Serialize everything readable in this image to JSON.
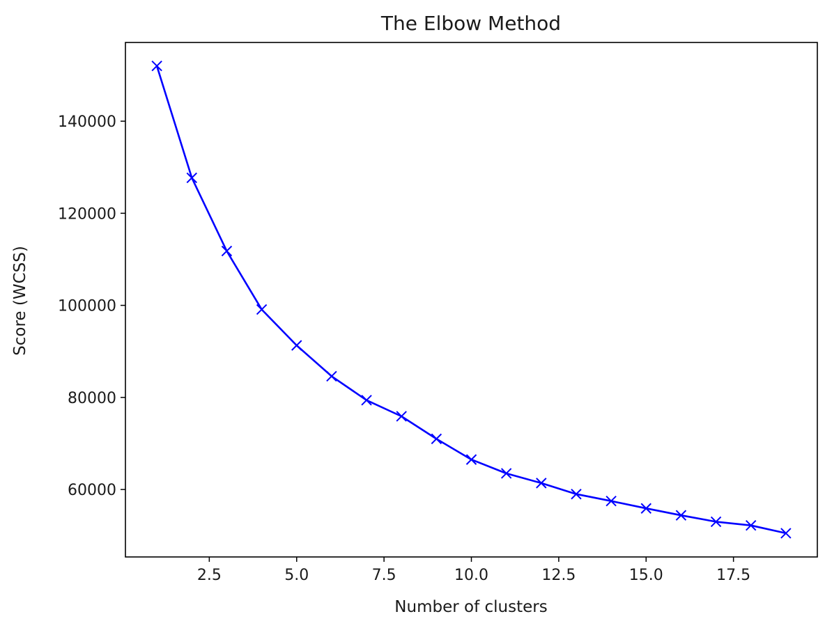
{
  "chart_data": {
    "type": "line",
    "title": "The Elbow Method",
    "xlabel": "Number of clusters",
    "ylabel": "Score (WCSS)",
    "xlim": [
      0.1,
      19.9
    ],
    "ylim": [
      45350,
      157100
    ],
    "xticks": [
      2.5,
      5.0,
      7.5,
      10.0,
      12.5,
      15.0,
      17.5
    ],
    "xtick_labels": [
      "2.5",
      "5.0",
      "7.5",
      "10.0",
      "12.5",
      "15.0",
      "17.5"
    ],
    "yticks": [
      60000,
      80000,
      100000,
      120000,
      140000
    ],
    "ytick_labels": [
      "60000",
      "80000",
      "100000",
      "120000",
      "140000"
    ],
    "grid": false,
    "legend": "none",
    "marker": "x",
    "series": [
      {
        "color": "#0000ff",
        "x": [
          1,
          2,
          3,
          4,
          5,
          6,
          7,
          8,
          9,
          10,
          11,
          12,
          13,
          14,
          15,
          16,
          17,
          18,
          19
        ],
        "values": [
          152000,
          127700,
          111800,
          99100,
          91300,
          84600,
          79400,
          75900,
          71000,
          66500,
          63500,
          61400,
          59000,
          57500,
          55900,
          54400,
          53000,
          52200,
          50500
        ]
      }
    ]
  }
}
